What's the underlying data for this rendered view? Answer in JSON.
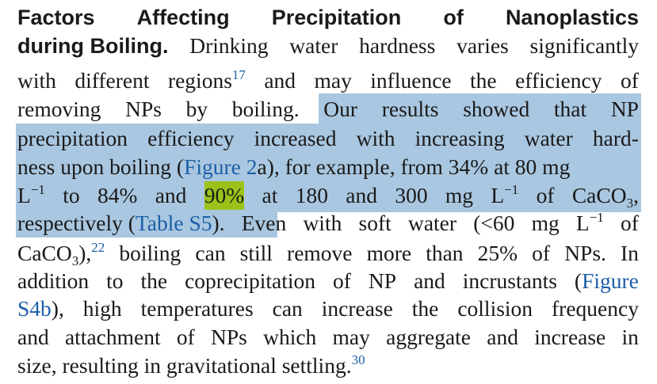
{
  "paragraph": {
    "heading_line1": [
      "Factors",
      "Affecting",
      "Precipitation",
      "of",
      "Nanoplastics"
    ],
    "heading_line2": "during Boiling.",
    "l2_rest": [
      "Drinking",
      "water",
      "hardness",
      "varies",
      "significantly"
    ],
    "l3": {
      "pre": [
        "with",
        "different"
      ],
      "regions": "regions",
      "ref17": "17",
      "post": [
        "and",
        "may",
        "influence",
        "the",
        "efficiency",
        "of"
      ]
    },
    "l4": {
      "plain": [
        "removing",
        "NPs",
        "by",
        "boiling."
      ],
      "hl": [
        "Our",
        "results",
        "showed",
        "that",
        "NP"
      ]
    },
    "l5": [
      "precipitation",
      "efficiency",
      "increased",
      "with",
      "increasing",
      "water",
      "hard-"
    ],
    "l6": {
      "a": "ness upon boiling (",
      "fig2": "Figure 2",
      "b": "a), for example, from 34% at 80 mg"
    },
    "l7": {
      "L": "L",
      "exp": "−1",
      "to": "to",
      "v84": "84%",
      "and": "and",
      "v90": "90%",
      "at": "at",
      "v180": "180",
      "and2": "and",
      "v300": "300",
      "mg": "mg",
      "L2": "L",
      "exp2": "−1",
      "of": "of",
      "caco": "CaCO",
      "sub3": "3",
      "comma": ","
    },
    "l8": {
      "respectively": "respectively (",
      "tables5": "Table S5",
      "close": ").",
      "even": "Even",
      "with": "with",
      "soft": "soft",
      "water": "water",
      "lt60": "(<60",
      "mg": "mg",
      "L": "L",
      "exp": "−1",
      "of": "of"
    },
    "l9": {
      "caco": "CaCO",
      "sub3": "3",
      "paren": "),",
      "ref22": "22",
      "words": [
        "boiling",
        "can",
        "still",
        "remove",
        "more",
        "than",
        "25%",
        "of",
        "NPs.",
        "In"
      ]
    },
    "l10": {
      "words": [
        "addition",
        "to",
        "the",
        "coprecipitation",
        "of",
        "NP",
        "and",
        "incrustants"
      ],
      "open": "(",
      "figure": "Figure"
    },
    "l11": {
      "s4b": "S4b",
      "rest": [
        "),",
        "high",
        "temperatures",
        "can",
        "increase",
        "the",
        "collision",
        "frequency"
      ]
    },
    "l12": [
      "and",
      "attachment",
      "of",
      "NPs",
      "which",
      "may",
      "aggregate",
      "and",
      "increase",
      "in"
    ],
    "l13": {
      "text": "size, resulting in gravitational settling.",
      "ref30": "30"
    }
  }
}
